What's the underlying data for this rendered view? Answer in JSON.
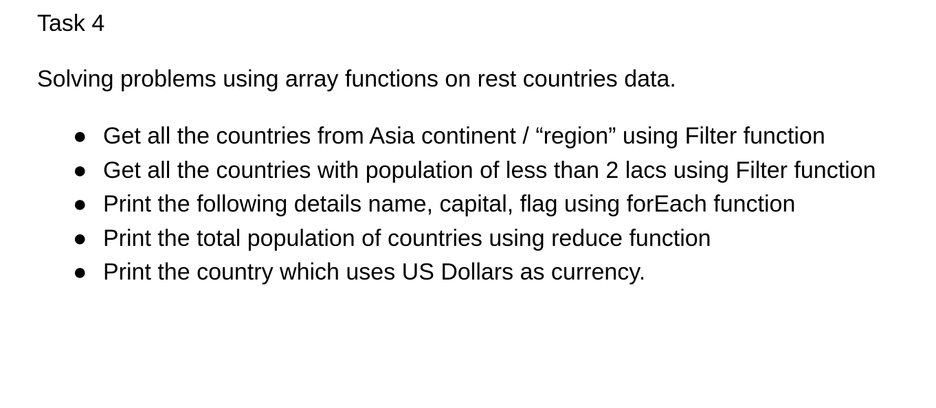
{
  "document": {
    "title": "Task 4",
    "intro": "Solving problems using array functions on rest countries data.",
    "bullet_glyph": "●",
    "items": [
      "Get all the countries from Asia continent / “region” using Filter function",
      "Get all the countries with population of less than 2 lacs using Filter function",
      "Print the following details name, capital, flag using forEach function",
      "Print the total population of countries using reduce function",
      "Print the country which uses US Dollars as currency."
    ]
  }
}
